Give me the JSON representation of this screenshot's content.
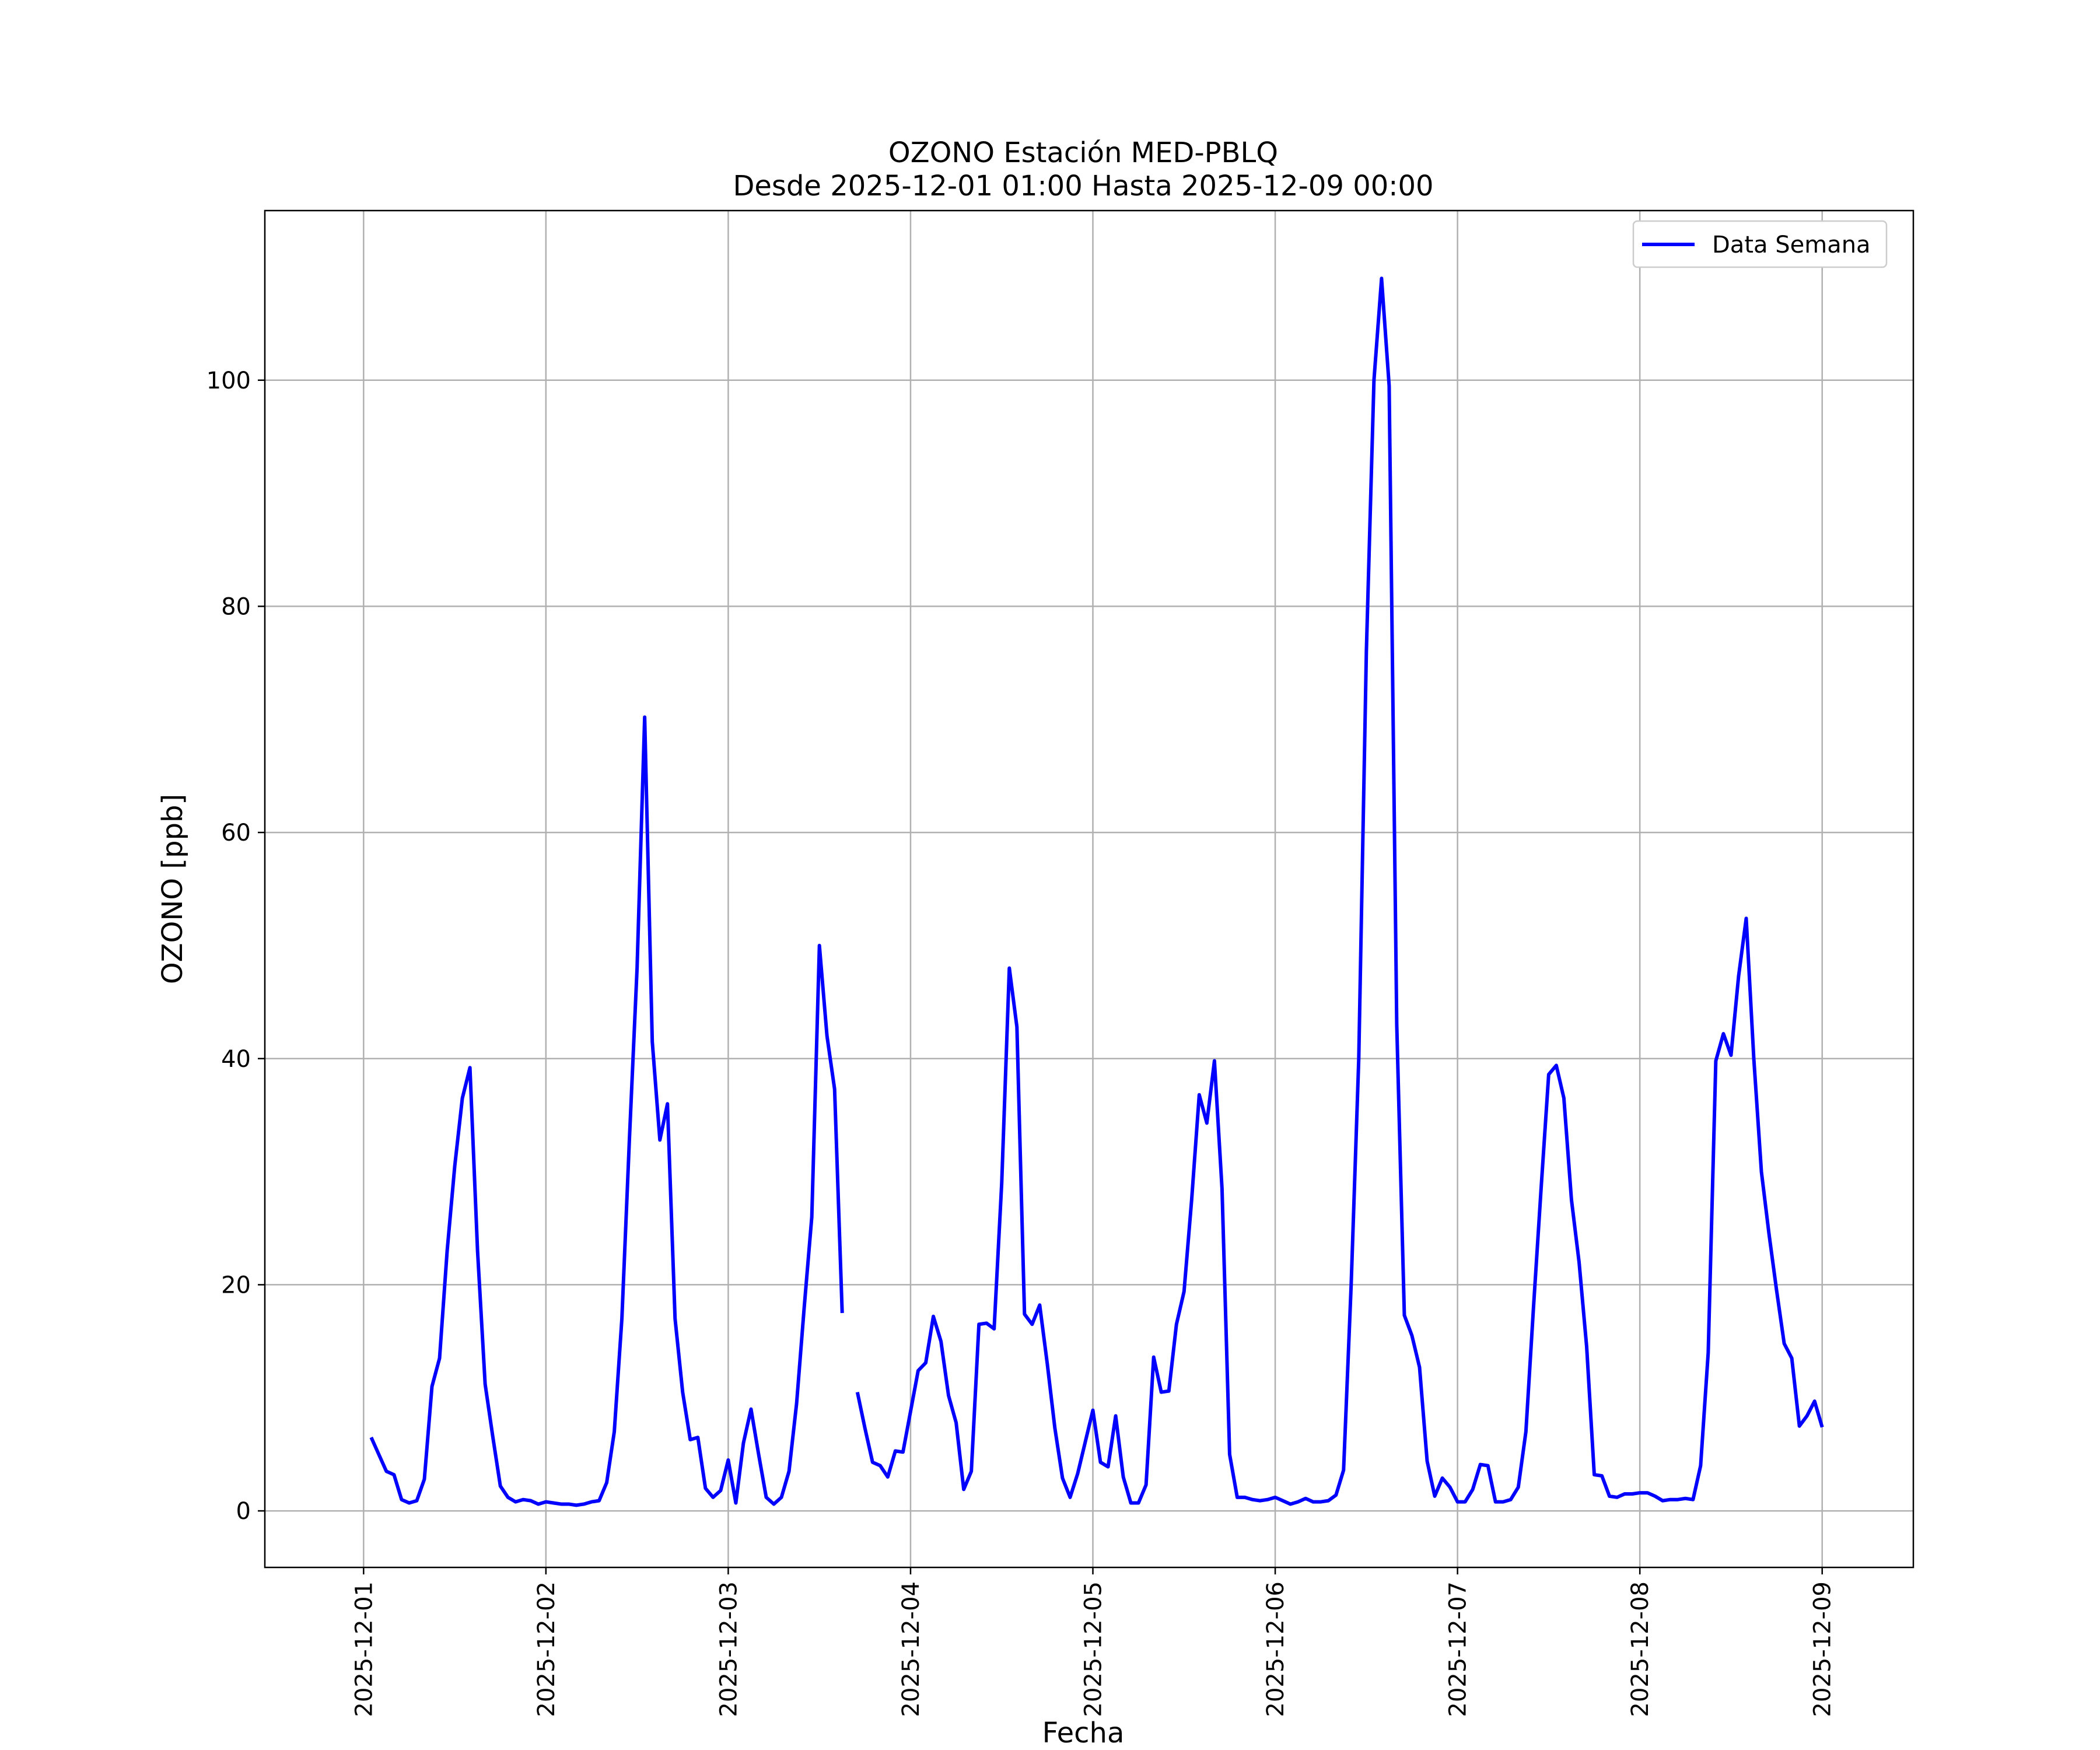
{
  "chart_data": {
    "type": "line",
    "title_line1": "OZONO Estación MED-PBLQ",
    "title_line2": "Desde 2025-12-01 01:00 Hasta 2025-12-09 00:00",
    "xlabel": "Fecha",
    "ylabel": "OZONO [ppb]",
    "x_tick_labels": [
      "2025-12-01",
      "2025-12-02",
      "2025-12-03",
      "2025-12-04",
      "2025-12-05",
      "2025-12-06",
      "2025-12-07",
      "2025-12-08",
      "2025-12-09"
    ],
    "y_ticks": [
      0,
      20,
      40,
      60,
      80,
      100
    ],
    "xlim": [
      "2025-11-30 11:00",
      "2025-12-09 12:00"
    ],
    "ylim": [
      -5,
      115
    ],
    "grid": true,
    "legend_position": "top-right",
    "colors": {
      "line": "#0000ff",
      "grid": "#b0b0b0",
      "axes": "#000000"
    },
    "series": [
      {
        "name": "Data Semana",
        "x": [
          "2025-12-01 01:00",
          "2025-12-01 02:00",
          "2025-12-01 03:00",
          "2025-12-01 04:00",
          "2025-12-01 05:00",
          "2025-12-01 06:00",
          "2025-12-01 07:00",
          "2025-12-01 08:00",
          "2025-12-01 09:00",
          "2025-12-01 10:00",
          "2025-12-01 11:00",
          "2025-12-01 12:00",
          "2025-12-01 13:00",
          "2025-12-01 14:00",
          "2025-12-01 15:00",
          "2025-12-01 16:00",
          "2025-12-01 17:00",
          "2025-12-01 18:00",
          "2025-12-01 19:00",
          "2025-12-01 20:00",
          "2025-12-01 21:00",
          "2025-12-01 22:00",
          "2025-12-01 23:00",
          "2025-12-02 00:00",
          "2025-12-02 01:00",
          "2025-12-02 02:00",
          "2025-12-02 03:00",
          "2025-12-02 04:00",
          "2025-12-02 05:00",
          "2025-12-02 06:00",
          "2025-12-02 07:00",
          "2025-12-02 08:00",
          "2025-12-02 09:00",
          "2025-12-02 10:00",
          "2025-12-02 11:00",
          "2025-12-02 12:00",
          "2025-12-02 13:00",
          "2025-12-02 14:00",
          "2025-12-02 15:00",
          "2025-12-02 16:00",
          "2025-12-02 17:00",
          "2025-12-02 18:00",
          "2025-12-02 19:00",
          "2025-12-02 20:00",
          "2025-12-02 21:00",
          "2025-12-02 22:00",
          "2025-12-02 23:00",
          "2025-12-03 00:00",
          "2025-12-03 01:00",
          "2025-12-03 02:00",
          "2025-12-03 03:00",
          "2025-12-03 04:00",
          "2025-12-03 05:00",
          "2025-12-03 06:00",
          "2025-12-03 07:00",
          "2025-12-03 08:00",
          "2025-12-03 09:00",
          "2025-12-03 10:00",
          "2025-12-03 11:00",
          "2025-12-03 12:00",
          "2025-12-03 13:00",
          "2025-12-03 14:00",
          "2025-12-03 15:00",
          "2025-12-03 16:00",
          "2025-12-03 17:00",
          "2025-12-03 18:00",
          "2025-12-03 19:00",
          "2025-12-03 20:00",
          "2025-12-03 21:00",
          "2025-12-03 22:00",
          "2025-12-03 23:00",
          "2025-12-04 00:00",
          "2025-12-04 01:00",
          "2025-12-04 02:00",
          "2025-12-04 03:00",
          "2025-12-04 04:00",
          "2025-12-04 05:00",
          "2025-12-04 06:00",
          "2025-12-04 07:00",
          "2025-12-04 08:00",
          "2025-12-04 09:00",
          "2025-12-04 10:00",
          "2025-12-04 11:00",
          "2025-12-04 12:00",
          "2025-12-04 13:00",
          "2025-12-04 14:00",
          "2025-12-04 15:00",
          "2025-12-04 16:00",
          "2025-12-04 17:00",
          "2025-12-04 18:00",
          "2025-12-04 19:00",
          "2025-12-04 20:00",
          "2025-12-04 21:00",
          "2025-12-04 22:00",
          "2025-12-04 23:00",
          "2025-12-05 00:00",
          "2025-12-05 01:00",
          "2025-12-05 02:00",
          "2025-12-05 03:00",
          "2025-12-05 04:00",
          "2025-12-05 05:00",
          "2025-12-05 06:00",
          "2025-12-05 07:00",
          "2025-12-05 08:00",
          "2025-12-05 09:00",
          "2025-12-05 10:00",
          "2025-12-05 11:00",
          "2025-12-05 12:00",
          "2025-12-05 13:00",
          "2025-12-05 14:00",
          "2025-12-05 15:00",
          "2025-12-05 16:00",
          "2025-12-05 17:00",
          "2025-12-05 18:00",
          "2025-12-05 19:00",
          "2025-12-05 20:00",
          "2025-12-05 21:00",
          "2025-12-05 22:00",
          "2025-12-05 23:00",
          "2025-12-06 00:00",
          "2025-12-06 01:00",
          "2025-12-06 02:00",
          "2025-12-06 03:00",
          "2025-12-06 04:00",
          "2025-12-06 05:00",
          "2025-12-06 06:00",
          "2025-12-06 07:00",
          "2025-12-06 08:00",
          "2025-12-06 09:00",
          "2025-12-06 10:00",
          "2025-12-06 11:00",
          "2025-12-06 12:00",
          "2025-12-06 13:00",
          "2025-12-06 14:00",
          "2025-12-06 15:00",
          "2025-12-06 16:00",
          "2025-12-06 17:00",
          "2025-12-06 18:00",
          "2025-12-06 19:00",
          "2025-12-06 20:00",
          "2025-12-06 21:00",
          "2025-12-06 22:00",
          "2025-12-06 23:00",
          "2025-12-07 00:00",
          "2025-12-07 01:00",
          "2025-12-07 02:00",
          "2025-12-07 03:00",
          "2025-12-07 04:00",
          "2025-12-07 05:00",
          "2025-12-07 06:00",
          "2025-12-07 07:00",
          "2025-12-07 08:00",
          "2025-12-07 09:00",
          "2025-12-07 10:00",
          "2025-12-07 11:00",
          "2025-12-07 12:00",
          "2025-12-07 13:00",
          "2025-12-07 14:00",
          "2025-12-07 15:00",
          "2025-12-07 16:00",
          "2025-12-07 17:00",
          "2025-12-07 18:00",
          "2025-12-07 19:00",
          "2025-12-07 20:00",
          "2025-12-07 21:00",
          "2025-12-07 22:00",
          "2025-12-07 23:00",
          "2025-12-08 00:00",
          "2025-12-08 01:00",
          "2025-12-08 02:00",
          "2025-12-08 03:00",
          "2025-12-08 04:00",
          "2025-12-08 05:00",
          "2025-12-08 06:00",
          "2025-12-08 07:00",
          "2025-12-08 08:00",
          "2025-12-08 09:00",
          "2025-12-08 10:00",
          "2025-12-08 11:00",
          "2025-12-08 12:00",
          "2025-12-08 13:00",
          "2025-12-08 14:00",
          "2025-12-08 15:00",
          "2025-12-08 16:00",
          "2025-12-08 17:00",
          "2025-12-08 18:00",
          "2025-12-08 19:00",
          "2025-12-08 20:00",
          "2025-12-08 21:00",
          "2025-12-08 22:00",
          "2025-12-08 23:00",
          "2025-12-09 00:00"
        ],
        "values": [
          6.5,
          5,
          3.5,
          3.2,
          1,
          0.7,
          0.9,
          2.8,
          11,
          13.5,
          23,
          30.5,
          36.5,
          39.2,
          23,
          11.2,
          6.6,
          2.2,
          1.2,
          0.8,
          1,
          0.9,
          0.6,
          0.8,
          0.7,
          0.6,
          0.6,
          0.5,
          0.6,
          0.8,
          0.9,
          2.5,
          7,
          17,
          33,
          48,
          70.2,
          41.5,
          32.8,
          36,
          17,
          10.5,
          6.3,
          6.5,
          2,
          1.2,
          1.8,
          4.5,
          0.7,
          6,
          9,
          5,
          1.2,
          0.6,
          1.2,
          3.5,
          9.5,
          18,
          26,
          50,
          42,
          37.3,
          17.5,
          null,
          10.5,
          7.3,
          4.3,
          4,
          3,
          5.3,
          5.2,
          8.8,
          12.4,
          13.1,
          17.2,
          15,
          10.2,
          7.8,
          1.9,
          3.5,
          16.5,
          16.6,
          16.1,
          29,
          48,
          42.8,
          17.4,
          16.5,
          18.2,
          13,
          7.3,
          2.9,
          1.2,
          3.3,
          6.1,
          8.9,
          4.3,
          3.9,
          8.4,
          3,
          0.7,
          0.7,
          2.3,
          13.6,
          10.5,
          10.6,
          16.5,
          19.4,
          27.5,
          36.8,
          34.3,
          39.8,
          28.5,
          5,
          1.2,
          1.2,
          1,
          0.9,
          1,
          1.2,
          0.9,
          0.6,
          0.8,
          1.1,
          0.8,
          0.8,
          0.9,
          1.4,
          3.6,
          20,
          40,
          76,
          100,
          109,
          99.5,
          43,
          17.3,
          15.5,
          12.7,
          4.4,
          1.3,
          2.9,
          2.1,
          0.8,
          0.8,
          1.9,
          4.1,
          4,
          0.8,
          0.8,
          1,
          2.1,
          7,
          18,
          28.5,
          38.6,
          39.4,
          36.5,
          27.5,
          22,
          14.5,
          3.2,
          3.1,
          1.3,
          1.2,
          1.5,
          1.5,
          1.6,
          1.6,
          1.3,
          0.9,
          1,
          1,
          1.1,
          1,
          4,
          14,
          39.8,
          42.2,
          40.3,
          47.3,
          52.4,
          40,
          30,
          24.5,
          19.5,
          14.8,
          13.5,
          7.5,
          8.4,
          9.7,
          7.4
        ]
      }
    ]
  }
}
